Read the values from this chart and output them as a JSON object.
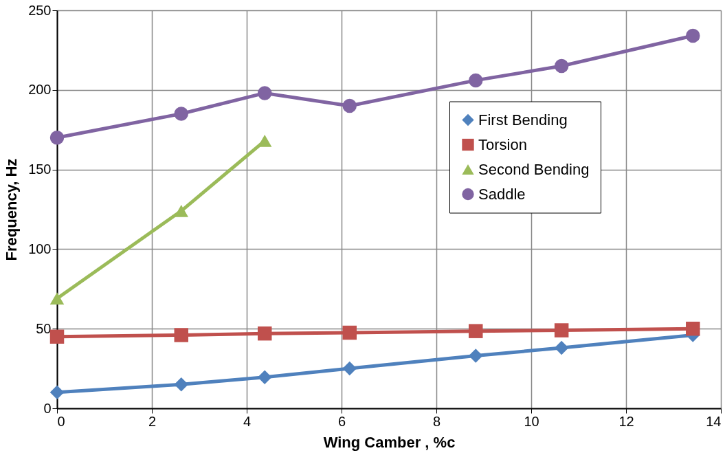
{
  "chart_data": {
    "type": "line",
    "xlabel": "Wing Camber , %c",
    "ylabel": "Frequency, Hz",
    "x": [
      0,
      2.62,
      4.38,
      6.17,
      8.83,
      10.64,
      13.41
    ],
    "series": [
      {
        "name": "First Bending",
        "color": "#4f81bd",
        "marker": "diamond",
        "values": [
          10,
          15,
          19.5,
          25,
          33,
          38,
          46
        ]
      },
      {
        "name": "Torsion",
        "color": "#c0504d",
        "marker": "square",
        "values": [
          45,
          46,
          47,
          47.5,
          48.5,
          49,
          50
        ]
      },
      {
        "name": "Second Bending",
        "color": "#9bbb59",
        "marker": "triangle",
        "values": [
          69,
          124,
          168,
          null,
          null,
          null,
          null
        ]
      },
      {
        "name": "Saddle",
        "color": "#8064a2",
        "marker": "circle",
        "values": [
          170,
          185,
          198,
          190,
          206,
          215,
          234
        ]
      }
    ],
    "xlim": [
      0,
      14
    ],
    "xticks": [
      0,
      2,
      4,
      6,
      8,
      10,
      12,
      14
    ],
    "ylim": [
      0,
      250
    ],
    "yticks": [
      0,
      50,
      100,
      150,
      200,
      250
    ],
    "grid": true,
    "legend": "right",
    "line_style": "solid"
  }
}
